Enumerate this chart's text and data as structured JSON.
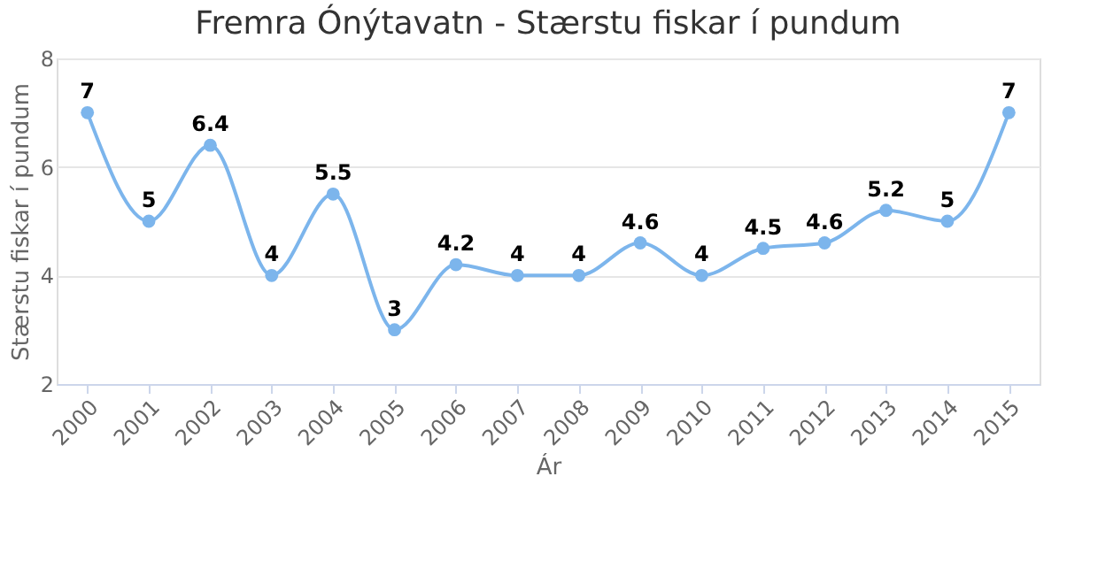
{
  "chart_data": {
    "type": "line",
    "title": "Fremra Ónýtavatn - Stærstu fiskar í pundum",
    "xlabel": "Ár",
    "ylabel": "Stærstu fiskar í pundum",
    "categories": [
      "2000",
      "2001",
      "2002",
      "2003",
      "2004",
      "2005",
      "2006",
      "2007",
      "2008",
      "2009",
      "2010",
      "2011",
      "2012",
      "2013",
      "2014",
      "2015"
    ],
    "series": [
      {
        "color": "#7cb5ec",
        "values": [
          7,
          5,
          6.4,
          4,
          5.5,
          3,
          4.2,
          4,
          4,
          4.6,
          4,
          4.5,
          4.6,
          5.2,
          5,
          7
        ]
      }
    ],
    "ylim": [
      2,
      8
    ],
    "yticks": [
      2,
      4,
      6,
      8
    ],
    "grid": "y",
    "marker": "circle",
    "data_labels": true,
    "legend": false
  }
}
